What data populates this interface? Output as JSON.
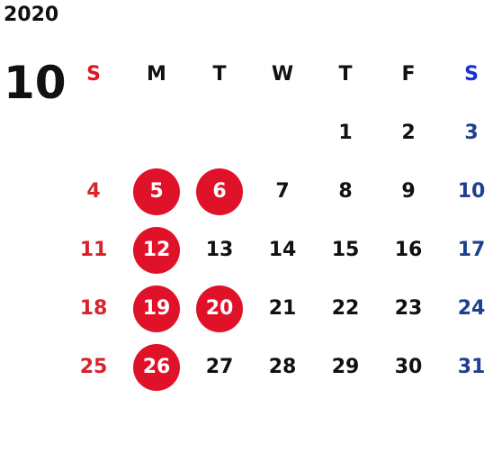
{
  "calendar": {
    "year": "2020",
    "month": "10",
    "weekdays": [
      "S",
      "M",
      "T",
      "W",
      "T",
      "F",
      "S"
    ],
    "days": [
      "",
      "",
      "",
      "",
      "1",
      "2",
      "3",
      "4",
      "5",
      "6",
      "7",
      "8",
      "9",
      "10",
      "11",
      "12",
      "13",
      "14",
      "15",
      "16",
      "17",
      "18",
      "19",
      "20",
      "21",
      "22",
      "23",
      "24",
      "25",
      "26",
      "27",
      "28",
      "29",
      "30",
      "31"
    ],
    "highlighted_days": [
      "5",
      "6",
      "12",
      "19",
      "20",
      "26"
    ]
  },
  "colors": {
    "sunday": "#d8232a",
    "saturday": "#1f3f8f",
    "highlight_fill": "#e0122a",
    "weekday_text": "#111111"
  }
}
